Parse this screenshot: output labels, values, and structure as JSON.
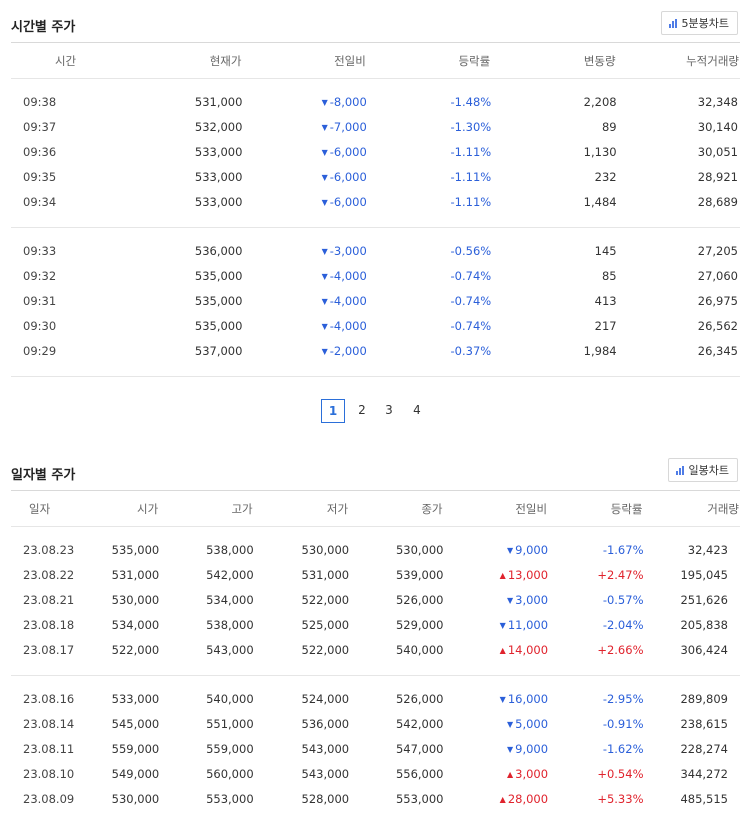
{
  "time_section": {
    "title": "시간별 주가",
    "chart_button": "5분봉차트",
    "columns": [
      "시간",
      "현재가",
      "전일비",
      "등락률",
      "변동량",
      "누적거래량"
    ],
    "groups": [
      [
        {
          "time": "09:38",
          "price": "531,000",
          "change": "8,000",
          "dir": "down",
          "rate": "-1.48%",
          "delta": "2,208",
          "cum": "32,348"
        },
        {
          "time": "09:37",
          "price": "532,000",
          "change": "7,000",
          "dir": "down",
          "rate": "-1.30%",
          "delta": "89",
          "cum": "30,140"
        },
        {
          "time": "09:36",
          "price": "533,000",
          "change": "6,000",
          "dir": "down",
          "rate": "-1.11%",
          "delta": "1,130",
          "cum": "30,051"
        },
        {
          "time": "09:35",
          "price": "533,000",
          "change": "6,000",
          "dir": "down",
          "rate": "-1.11%",
          "delta": "232",
          "cum": "28,921"
        },
        {
          "time": "09:34",
          "price": "533,000",
          "change": "6,000",
          "dir": "down",
          "rate": "-1.11%",
          "delta": "1,484",
          "cum": "28,689"
        }
      ],
      [
        {
          "time": "09:33",
          "price": "536,000",
          "change": "3,000",
          "dir": "down",
          "rate": "-0.56%",
          "delta": "145",
          "cum": "27,205"
        },
        {
          "time": "09:32",
          "price": "535,000",
          "change": "4,000",
          "dir": "down",
          "rate": "-0.74%",
          "delta": "85",
          "cum": "27,060"
        },
        {
          "time": "09:31",
          "price": "535,000",
          "change": "4,000",
          "dir": "down",
          "rate": "-0.74%",
          "delta": "413",
          "cum": "26,975"
        },
        {
          "time": "09:30",
          "price": "535,000",
          "change": "4,000",
          "dir": "down",
          "rate": "-0.74%",
          "delta": "217",
          "cum": "26,562"
        },
        {
          "time": "09:29",
          "price": "537,000",
          "change": "2,000",
          "dir": "down",
          "rate": "-0.37%",
          "delta": "1,984",
          "cum": "26,345"
        }
      ]
    ]
  },
  "pagination": {
    "pages": [
      "1",
      "2",
      "3",
      "4"
    ],
    "current": "1"
  },
  "daily_section": {
    "title": "일자별 주가",
    "chart_button": "일봉차트",
    "columns": [
      "일자",
      "시가",
      "고가",
      "저가",
      "종가",
      "전일비",
      "등락률",
      "거래량"
    ],
    "groups": [
      [
        {
          "date": "23.08.23",
          "open": "535,000",
          "high": "538,000",
          "low": "530,000",
          "close": "530,000",
          "change": "9,000",
          "dir": "down",
          "rate": "-1.67%",
          "volume": "32,423"
        },
        {
          "date": "23.08.22",
          "open": "531,000",
          "high": "542,000",
          "low": "531,000",
          "close": "539,000",
          "change": "13,000",
          "dir": "up",
          "rate": "+2.47%",
          "volume": "195,045"
        },
        {
          "date": "23.08.21",
          "open": "530,000",
          "high": "534,000",
          "low": "522,000",
          "close": "526,000",
          "change": "3,000",
          "dir": "down",
          "rate": "-0.57%",
          "volume": "251,626"
        },
        {
          "date": "23.08.18",
          "open": "534,000",
          "high": "538,000",
          "low": "525,000",
          "close": "529,000",
          "change": "11,000",
          "dir": "down",
          "rate": "-2.04%",
          "volume": "205,838"
        },
        {
          "date": "23.08.17",
          "open": "522,000",
          "high": "543,000",
          "low": "522,000",
          "close": "540,000",
          "change": "14,000",
          "dir": "up",
          "rate": "+2.66%",
          "volume": "306,424"
        }
      ],
      [
        {
          "date": "23.08.16",
          "open": "533,000",
          "high": "540,000",
          "low": "524,000",
          "close": "526,000",
          "change": "16,000",
          "dir": "down",
          "rate": "-2.95%",
          "volume": "289,809"
        },
        {
          "date": "23.08.14",
          "open": "545,000",
          "high": "551,000",
          "low": "536,000",
          "close": "542,000",
          "change": "5,000",
          "dir": "down",
          "rate": "-0.91%",
          "volume": "238,615"
        },
        {
          "date": "23.08.11",
          "open": "559,000",
          "high": "559,000",
          "low": "543,000",
          "close": "547,000",
          "change": "9,000",
          "dir": "down",
          "rate": "-1.62%",
          "volume": "228,274"
        },
        {
          "date": "23.08.10",
          "open": "549,000",
          "high": "560,000",
          "low": "543,000",
          "close": "556,000",
          "change": "3,000",
          "dir": "up",
          "rate": "+0.54%",
          "volume": "344,272"
        },
        {
          "date": "23.08.09",
          "open": "530,000",
          "high": "553,000",
          "low": "528,000",
          "close": "553,000",
          "change": "28,000",
          "dir": "up",
          "rate": "+5.33%",
          "volume": "485,515"
        }
      ]
    ]
  },
  "colors": {
    "down": "#2b5fd9",
    "up": "#e0232d",
    "accent": "#2b6fd9"
  },
  "icons": {
    "chart_button": "bar-chart-icon",
    "down": "triangle-down-icon",
    "up": "triangle-up-icon"
  }
}
